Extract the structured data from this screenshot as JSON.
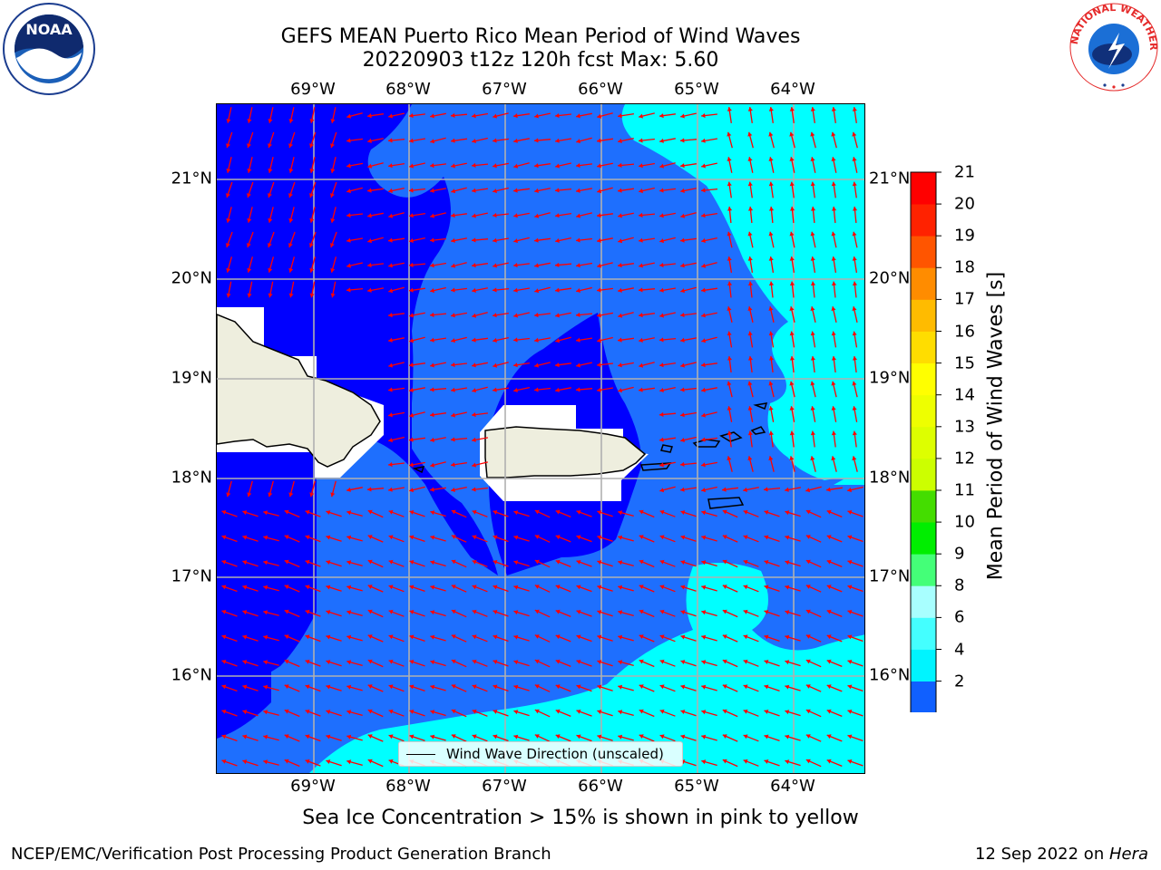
{
  "title": "GEFS MEAN Puerto Rico Mean Period of Wind Waves",
  "subtitle": "20220903 t12z 120h fcst   Max: 5.60",
  "chart_data": {
    "type": "map",
    "variable": "Mean Period of Wind Waves [s]",
    "max_value": 5.6,
    "lon_ticks": [
      "69°W",
      "68°W",
      "67°W",
      "66°W",
      "65°W",
      "64°W"
    ],
    "lat_ticks": [
      "21°N",
      "20°N",
      "19°N",
      "18°N",
      "17°N",
      "16°N"
    ],
    "lon_range": [
      -70.0,
      -63.3
    ],
    "lat_range": [
      15.0,
      21.7
    ],
    "gridlines": true,
    "legend": {
      "label": "Wind Wave Direction (unscaled)",
      "placement": "bottom-center"
    },
    "vector_field": {
      "name": "Wind Wave Direction",
      "color": "#ff0000",
      "dominant_direction": "west-southwest"
    },
    "colorbar": {
      "label": "Mean Period of Wind Waves [s]",
      "ticks": [
        "21",
        "20",
        "19",
        "18",
        "17",
        "16",
        "15",
        "14",
        "13",
        "12",
        "11",
        "10",
        "9",
        "8",
        "6",
        "4",
        "2"
      ],
      "levels": [
        2,
        4,
        6,
        8,
        9,
        10,
        11,
        12,
        13,
        14,
        15,
        16,
        17,
        18,
        19,
        20,
        21
      ],
      "colors": [
        "#1060ff",
        "#00f4ff",
        "#44ffff",
        "#a8ffff",
        "#44ff78",
        "#00ee00",
        "#44dd00",
        "#ccff00",
        "#ddff00",
        "#eeff00",
        "#ffff00",
        "#ffdd00",
        "#ffbb00",
        "#ff8c00",
        "#ff5500",
        "#ff2200",
        "#ff0000"
      ],
      "under_color": "#0000ff",
      "extend": "min"
    },
    "fill_colors": {
      "under_2s": "#0000ff",
      "range_2_4": "#1e6ffe",
      "range_4_6": "#00ffff",
      "land": "#eeeede",
      "masked": "#ffffff"
    }
  },
  "sea_ice_note": "Sea Ice Concentration > 15% is shown in pink to yellow",
  "footer": {
    "left": "NCEP/EMC/Verification Post Processing Product Generation Branch",
    "date": "12 Sep 2022 on ",
    "machine": "Hera"
  },
  "logos": {
    "noaa": "NOAA",
    "nws": "NATIONAL WEATHER SERVICE"
  }
}
